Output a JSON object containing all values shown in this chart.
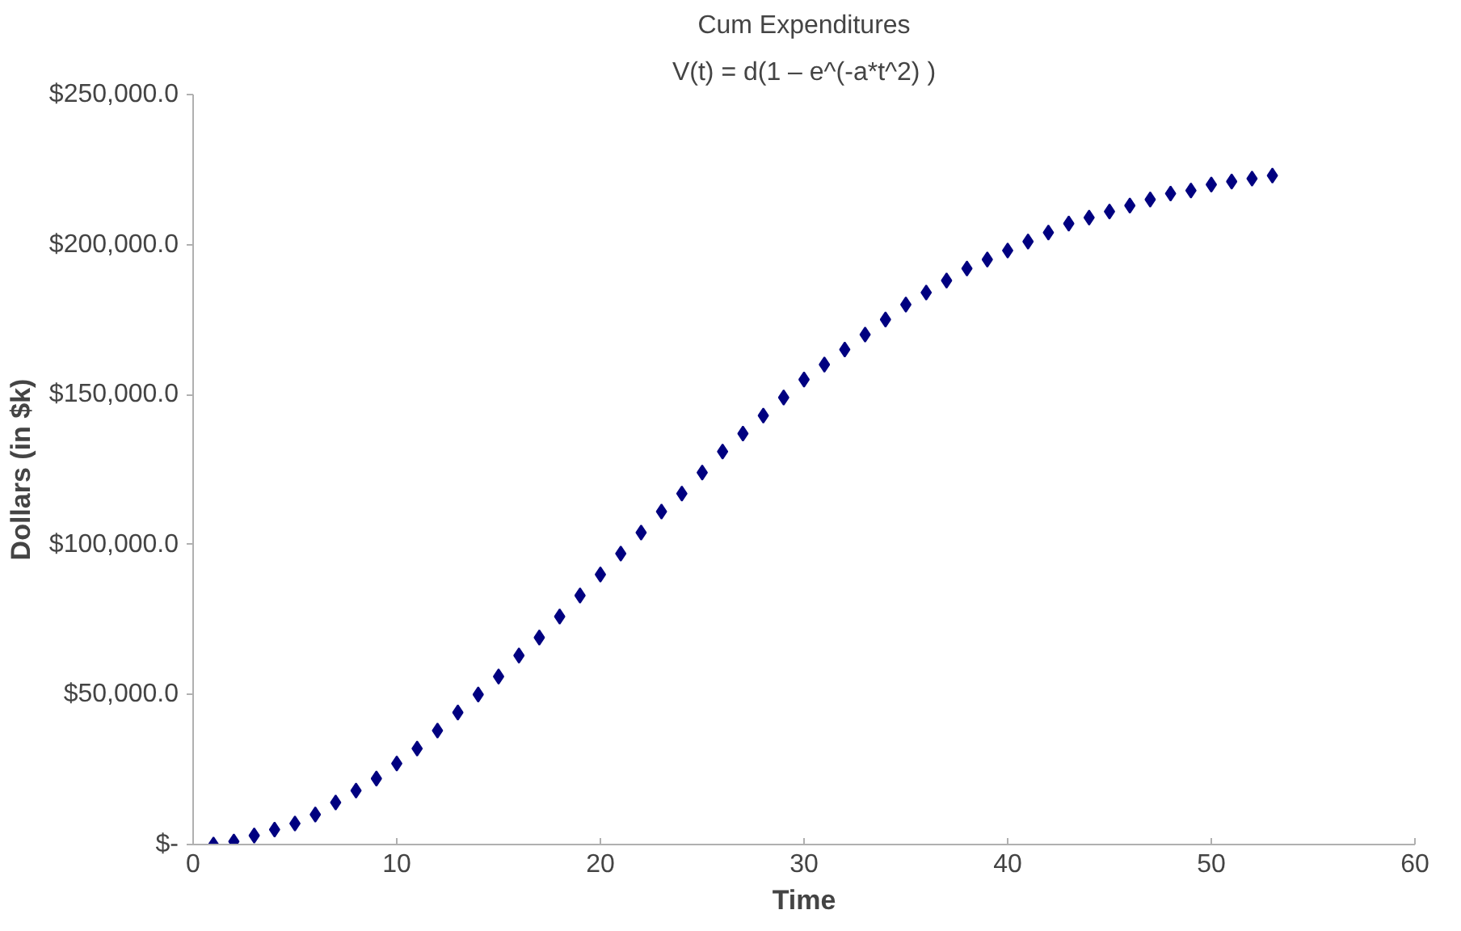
{
  "chart_data": {
    "type": "scatter",
    "title": "Cum Expenditures",
    "subtitle": "V(t) = d(1 – e^(-a*t^2) )",
    "xlabel": "Time",
    "ylabel": "Dollars (in $k)",
    "x": [
      1,
      2,
      3,
      4,
      5,
      6,
      7,
      8,
      9,
      10,
      11,
      12,
      13,
      14,
      15,
      16,
      17,
      18,
      19,
      20,
      21,
      22,
      23,
      24,
      25,
      26,
      27,
      28,
      29,
      30,
      31,
      32,
      33,
      34,
      35,
      36,
      37,
      38,
      39,
      40,
      41,
      42,
      43,
      44,
      45,
      46,
      47,
      48,
      49,
      50,
      51,
      52,
      53
    ],
    "series": [
      {
        "color": "#000080",
        "values": [
          0,
          1000,
          3000,
          5000,
          7000,
          10000,
          14000,
          18000,
          22000,
          27000,
          32000,
          38000,
          44000,
          50000,
          56000,
          63000,
          69000,
          76000,
          83000,
          90000,
          97000,
          104000,
          111000,
          117000,
          124000,
          131000,
          137000,
          143000,
          149000,
          155000,
          160000,
          165000,
          170000,
          175000,
          180000,
          184000,
          188000,
          192000,
          195000,
          198000,
          201000,
          204000,
          207000,
          209000,
          211000,
          213000,
          215000,
          217000,
          218000,
          220000,
          221000,
          222000,
          223000
        ]
      }
    ],
    "marker": "diamond",
    "grid": false,
    "xlim": [
      0,
      60
    ],
    "xticks": [
      0,
      10,
      20,
      30,
      40,
      50,
      60
    ],
    "ylim": [
      0,
      250000
    ],
    "yticks": [
      {
        "value": 0,
        "label": "$-"
      },
      {
        "value": 50000,
        "label": "$50,000.0"
      },
      {
        "value": 100000,
        "label": "$100,000.0"
      },
      {
        "value": 150000,
        "label": "$150,000.0"
      },
      {
        "value": 200000,
        "label": "$200,000.0"
      },
      {
        "value": 250000,
        "label": "$250,000.0"
      }
    ]
  }
}
